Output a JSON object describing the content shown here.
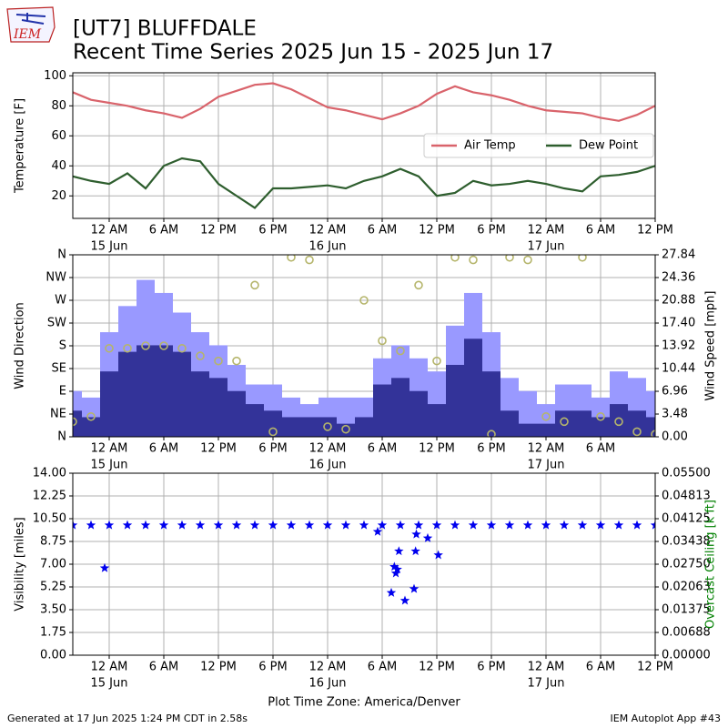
{
  "header": {
    "logo": "IEM",
    "title": "[UT7] BLUFFDALE",
    "subtitle": "Recent Time Series 2025 Jun 15 - 2025 Jun 17"
  },
  "footer": {
    "left": "Generated at 17 Jun 2025 1:24 PM CDT in 2.58s",
    "right": "IEM Autoplot App #43"
  },
  "chart_data": [
    {
      "type": "line",
      "ylabel": "Temperature [F]",
      "grid": true,
      "legend": "center right",
      "xlim": [
        "2025-06-14T20:00",
        "2025-06-17T12:00"
      ],
      "ylim": [
        5,
        102
      ],
      "yticks": [
        20,
        40,
        60,
        80,
        100
      ],
      "xticks": [
        {
          "value": "2025-06-15T00:00",
          "label": "12 AM",
          "date": "15 Jun"
        },
        {
          "value": "2025-06-15T06:00",
          "label": "6 AM"
        },
        {
          "value": "2025-06-15T12:00",
          "label": "12 PM"
        },
        {
          "value": "2025-06-15T18:00",
          "label": "6 PM"
        },
        {
          "value": "2025-06-16T00:00",
          "label": "12 AM",
          "date": "16 Jun"
        },
        {
          "value": "2025-06-16T06:00",
          "label": "6 AM"
        },
        {
          "value": "2025-06-16T12:00",
          "label": "12 PM"
        },
        {
          "value": "2025-06-16T18:00",
          "label": "6 PM"
        },
        {
          "value": "2025-06-17T00:00",
          "label": "12 AM",
          "date": "17 Jun"
        },
        {
          "value": "2025-06-17T06:00",
          "label": "6 AM"
        },
        {
          "value": "2025-06-17T12:00",
          "label": "12 PM"
        }
      ],
      "x": [
        "2025-06-14T20:00",
        "2025-06-14T22:00",
        "2025-06-15T00:00",
        "2025-06-15T02:00",
        "2025-06-15T04:00",
        "2025-06-15T06:00",
        "2025-06-15T08:00",
        "2025-06-15T10:00",
        "2025-06-15T12:00",
        "2025-06-15T14:00",
        "2025-06-15T16:00",
        "2025-06-15T18:00",
        "2025-06-15T20:00",
        "2025-06-15T22:00",
        "2025-06-16T00:00",
        "2025-06-16T02:00",
        "2025-06-16T04:00",
        "2025-06-16T06:00",
        "2025-06-16T08:00",
        "2025-06-16T10:00",
        "2025-06-16T12:00",
        "2025-06-16T14:00",
        "2025-06-16T16:00",
        "2025-06-16T18:00",
        "2025-06-16T20:00",
        "2025-06-16T22:00",
        "2025-06-17T00:00",
        "2025-06-17T02:00",
        "2025-06-17T04:00",
        "2025-06-17T06:00",
        "2025-06-17T08:00",
        "2025-06-17T10:00",
        "2025-06-17T12:00"
      ],
      "series": [
        {
          "name": "Air Temp",
          "color": "#d9636b",
          "values": [
            89,
            84,
            82,
            80,
            77,
            75,
            72,
            78,
            86,
            90,
            94,
            95,
            91,
            85,
            79,
            77,
            74,
            71,
            75,
            80,
            88,
            93,
            89,
            87,
            84,
            80,
            77,
            76,
            75,
            72,
            70,
            74,
            80
          ]
        },
        {
          "name": "Dew Point",
          "color": "#2e5e2e",
          "values": [
            33,
            30,
            28,
            35,
            25,
            40,
            45,
            43,
            28,
            20,
            12,
            25,
            25,
            26,
            27,
            25,
            30,
            33,
            38,
            33,
            20,
            22,
            30,
            27,
            28,
            30,
            28,
            25,
            23,
            33,
            34,
            36,
            40
          ]
        }
      ]
    },
    {
      "type": "combo",
      "ylabel": "Wind Direction",
      "y2label": "Wind Speed [mph]",
      "grid": true,
      "xlim": [
        "2025-06-14T20:00",
        "2025-06-17T12:00"
      ],
      "ylim": [
        0,
        360
      ],
      "yticks": [
        {
          "value": 0,
          "label": "N"
        },
        {
          "value": 45,
          "label": "NE"
        },
        {
          "value": 90,
          "label": "E"
        },
        {
          "value": 135,
          "label": "SE"
        },
        {
          "value": 180,
          "label": "S"
        },
        {
          "value": 225,
          "label": "SW"
        },
        {
          "value": 270,
          "label": "W"
        },
        {
          "value": 315,
          "label": "NW"
        },
        {
          "value": 360,
          "label": "N"
        }
      ],
      "y2lim": [
        0,
        27.84
      ],
      "y2ticks": [
        {
          "value": 0,
          "label": "0.00"
        },
        3.48,
        6.96,
        10.44,
        13.92,
        {
          "value": 17.4,
          "label": "17.40"
        },
        20.88,
        24.36,
        27.84
      ],
      "xticks": [
        {
          "value": "2025-06-15T00:00",
          "label": "12 AM",
          "date": "15 Jun"
        },
        {
          "value": "2025-06-15T06:00",
          "label": "6 AM"
        },
        {
          "value": "2025-06-15T12:00",
          "label": "12 PM"
        },
        {
          "value": "2025-06-15T18:00",
          "label": "6 PM"
        },
        {
          "value": "2025-06-16T00:00",
          "label": "12 AM",
          "date": "16 Jun"
        },
        {
          "value": "2025-06-16T06:00",
          "label": "6 AM"
        },
        {
          "value": "2025-06-16T12:00",
          "label": "12 PM"
        },
        {
          "value": "2025-06-16T18:00",
          "label": "6 PM"
        },
        {
          "value": "2025-06-17T00:00",
          "label": "12 AM",
          "date": "17 Jun"
        },
        {
          "value": "2025-06-17T06:00",
          "label": "6 AM"
        }
      ],
      "x": [
        "2025-06-14T20:00",
        "2025-06-14T22:00",
        "2025-06-15T00:00",
        "2025-06-15T02:00",
        "2025-06-15T04:00",
        "2025-06-15T06:00",
        "2025-06-15T08:00",
        "2025-06-15T10:00",
        "2025-06-15T12:00",
        "2025-06-15T14:00",
        "2025-06-15T16:00",
        "2025-06-15T18:00",
        "2025-06-15T20:00",
        "2025-06-15T22:00",
        "2025-06-16T00:00",
        "2025-06-16T02:00",
        "2025-06-16T04:00",
        "2025-06-16T06:00",
        "2025-06-16T08:00",
        "2025-06-16T10:00",
        "2025-06-16T12:00",
        "2025-06-16T14:00",
        "2025-06-16T16:00",
        "2025-06-16T18:00",
        "2025-06-16T20:00",
        "2025-06-16T22:00",
        "2025-06-17T00:00",
        "2025-06-17T02:00",
        "2025-06-17T04:00",
        "2025-06-17T06:00",
        "2025-06-17T08:00",
        "2025-06-17T10:00",
        "2025-06-17T12:00"
      ],
      "series": [
        {
          "type": "bar",
          "axis": "y2",
          "color": "#9999ff",
          "values": [
            7,
            6,
            16,
            20,
            24,
            22,
            19,
            16,
            14,
            11,
            8,
            8,
            6,
            5,
            6,
            6,
            6,
            12,
            14,
            12,
            10,
            17,
            22,
            16,
            9,
            7,
            5,
            8,
            8,
            6,
            10,
            9,
            7
          ]
        },
        {
          "type": "bar",
          "axis": "y2",
          "color": "#333399",
          "values": [
            4,
            3,
            10,
            13,
            14,
            14,
            13,
            10,
            9,
            7,
            5,
            4,
            3,
            3,
            3,
            2,
            3,
            8,
            9,
            7,
            5,
            11,
            15,
            10,
            4,
            2,
            2,
            4,
            4,
            3,
            5,
            4,
            3
          ]
        },
        {
          "type": "scatter",
          "marker": "circle",
          "color": "#b5b56b",
          "values": [
            30,
            40,
            175,
            175,
            180,
            180,
            175,
            160,
            150,
            150,
            300,
            10,
            355,
            350,
            20,
            15,
            270,
            190,
            170,
            300,
            150,
            355,
            350,
            5,
            355,
            350,
            40,
            30,
            355,
            40,
            30,
            10,
            5
          ]
        }
      ]
    },
    {
      "type": "scatter",
      "ylabel": "Visibility [miles]",
      "y2label": "Overcast Ceiling [k ft]",
      "y2label_color": "green",
      "grid": true,
      "xlabel": "Plot Time Zone: America/Denver",
      "xlim": [
        "2025-06-14T20:00",
        "2025-06-17T12:00"
      ],
      "ylim": [
        0,
        14
      ],
      "yticks": [
        {
          "value": 0,
          "label": "0.00"
        },
        1.75,
        {
          "value": 3.5,
          "label": "3.50"
        },
        5.25,
        {
          "value": 7,
          "label": "7.00"
        },
        8.75,
        {
          "value": 10.5,
          "label": "10.50"
        },
        12.25,
        {
          "value": 14,
          "label": "14.00"
        }
      ],
      "y2lim": [
        0,
        0.055
      ],
      "y2ticks": [
        {
          "value": 0,
          "label": "0.00000"
        },
        {
          "value": 0.006875,
          "label": "0.00688"
        },
        {
          "value": 0.01375,
          "label": "0.01375"
        },
        {
          "value": 0.020625,
          "label": "0.02063"
        },
        {
          "value": 0.0275,
          "label": "0.02750"
        },
        {
          "value": 0.034375,
          "label": "0.03438"
        },
        {
          "value": 0.04125,
          "label": "0.04125"
        },
        {
          "value": 0.048125,
          "label": "0.04813"
        },
        {
          "value": 0.055,
          "label": "0.05500"
        }
      ],
      "xticks": [
        {
          "value": "2025-06-15T00:00",
          "label": "12 AM",
          "date": "15 Jun"
        },
        {
          "value": "2025-06-15T06:00",
          "label": "6 AM"
        },
        {
          "value": "2025-06-15T12:00",
          "label": "12 PM"
        },
        {
          "value": "2025-06-15T18:00",
          "label": "6 PM"
        },
        {
          "value": "2025-06-16T00:00",
          "label": "12 AM",
          "date": "16 Jun"
        },
        {
          "value": "2025-06-16T06:00",
          "label": "6 AM"
        },
        {
          "value": "2025-06-16T12:00",
          "label": "12 PM"
        },
        {
          "value": "2025-06-16T18:00",
          "label": "6 PM"
        },
        {
          "value": "2025-06-17T00:00",
          "label": "12 AM",
          "date": "17 Jun"
        },
        {
          "value": "2025-06-17T06:00",
          "label": "6 AM"
        },
        {
          "value": "2025-06-17T12:00",
          "label": "12 PM"
        }
      ],
      "series": [
        {
          "marker": "star",
          "color": "#0000ee",
          "x": [
            "2025-06-14T20:00",
            "2025-06-14T22:00",
            "2025-06-15T00:00",
            "2025-06-15T02:00",
            "2025-06-15T04:00",
            "2025-06-15T06:00",
            "2025-06-15T08:00",
            "2025-06-15T10:00",
            "2025-06-15T12:00",
            "2025-06-15T14:00",
            "2025-06-15T16:00",
            "2025-06-15T18:00",
            "2025-06-15T20:00",
            "2025-06-15T22:00",
            "2025-06-16T00:00",
            "2025-06-16T02:00",
            "2025-06-16T04:00",
            "2025-06-16T06:00",
            "2025-06-16T08:00",
            "2025-06-16T10:00",
            "2025-06-16T12:00",
            "2025-06-16T14:00",
            "2025-06-16T16:00",
            "2025-06-16T18:00",
            "2025-06-16T20:00",
            "2025-06-16T22:00",
            "2025-06-17T00:00",
            "2025-06-17T02:00",
            "2025-06-17T04:00",
            "2025-06-17T06:00",
            "2025-06-17T08:00",
            "2025-06-17T10:00",
            "2025-06-17T12:00",
            "2025-06-14T23:30",
            "2025-06-16T05:30",
            "2025-06-16T07:00",
            "2025-06-16T07:20",
            "2025-06-16T07:30",
            "2025-06-16T07:40",
            "2025-06-16T07:50",
            "2025-06-16T08:30",
            "2025-06-16T09:30",
            "2025-06-16T09:40",
            "2025-06-16T09:45",
            "2025-06-16T11:00",
            "2025-06-16T12:10"
          ],
          "values": [
            10,
            10,
            10,
            10,
            10,
            10,
            10,
            10,
            10,
            10,
            10,
            10,
            10,
            10,
            10,
            10,
            10,
            10,
            10,
            10,
            10,
            10,
            10,
            10,
            10,
            10,
            10,
            10,
            10,
            10,
            10,
            10,
            10,
            6.7,
            9.5,
            4.8,
            6.8,
            6.3,
            6.6,
            8.0,
            4.2,
            5.1,
            8.0,
            9.3,
            9.0,
            7.7
          ]
        }
      ]
    }
  ]
}
